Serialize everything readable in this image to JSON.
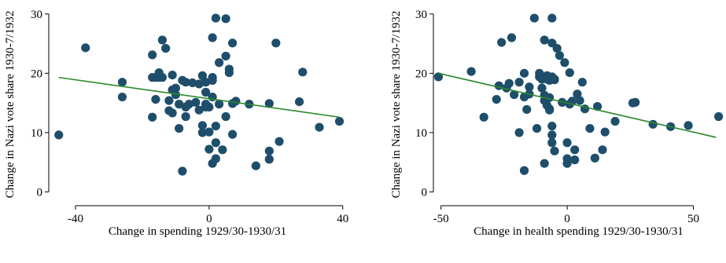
{
  "chart_data": [
    {
      "type": "scatter",
      "xlabel": "Change in spending 1929/30-1930/31",
      "ylabel": "Change in Nazi vote share 1930-7/1932",
      "xlim": [
        -48,
        41
      ],
      "ylim": [
        -1,
        30.5
      ],
      "xticks": [
        -40,
        0,
        40
      ],
      "yticks": [
        0,
        10,
        20,
        30
      ],
      "point_color": "#1f4e6b",
      "fit_color": "#2a8a2a",
      "fit_line": {
        "x": [
          -45,
          39
        ],
        "y": [
          19.3,
          12.6
        ]
      },
      "points": [
        [
          -45,
          9.6
        ],
        [
          -37,
          24.3
        ],
        [
          -26,
          18.5
        ],
        [
          -26,
          16.0
        ],
        [
          -17,
          23.1
        ],
        [
          -17,
          19.3
        ],
        [
          -16,
          19.3
        ],
        [
          -17,
          12.6
        ],
        [
          -15,
          20.1
        ],
        [
          -15,
          19.3
        ],
        [
          -14,
          25.6
        ],
        [
          -14,
          19.3
        ],
        [
          -16,
          15.6
        ],
        [
          -13,
          24.2
        ],
        [
          -12,
          15.4
        ],
        [
          -11,
          19.7
        ],
        [
          -11,
          17.2
        ],
        [
          -10,
          17.5
        ],
        [
          -12,
          13.7
        ],
        [
          -11,
          13.3
        ],
        [
          -10,
          16.4
        ],
        [
          -9,
          14.8
        ],
        [
          -9,
          10.7
        ],
        [
          -8,
          18.8
        ],
        [
          -7,
          18.5
        ],
        [
          -7,
          14.3
        ],
        [
          -7,
          12.7
        ],
        [
          -8,
          3.5
        ],
        [
          -6,
          14.8
        ],
        [
          -5,
          18.4
        ],
        [
          -4,
          15.1
        ],
        [
          -3,
          18.2
        ],
        [
          -3,
          13.8
        ],
        [
          -2,
          10.0
        ],
        [
          -2,
          11.2
        ],
        [
          -2,
          19.6
        ],
        [
          -1,
          18.5
        ],
        [
          -1,
          14.8
        ],
        [
          -1,
          14.3
        ],
        [
          -1,
          16.8
        ],
        [
          0,
          10.1
        ],
        [
          0,
          7.2
        ],
        [
          0,
          14.3
        ],
        [
          1,
          19.3
        ],
        [
          1,
          18.8
        ],
        [
          1,
          16.0
        ],
        [
          1,
          26.0
        ],
        [
          1,
          4.8
        ],
        [
          2,
          29.3
        ],
        [
          2,
          11.1
        ],
        [
          2,
          8.3
        ],
        [
          2,
          5.6
        ],
        [
          3,
          21.8
        ],
        [
          3,
          14.8
        ],
        [
          4,
          7.1
        ],
        [
          5,
          29.2
        ],
        [
          5,
          22.9
        ],
        [
          5,
          12.7
        ],
        [
          6,
          20.1
        ],
        [
          6,
          20.7
        ],
        [
          7,
          25.1
        ],
        [
          7,
          14.9
        ],
        [
          7,
          9.7
        ],
        [
          8,
          15.3
        ],
        [
          12,
          14.8
        ],
        [
          14,
          4.4
        ],
        [
          18,
          14.9
        ],
        [
          18,
          6.9
        ],
        [
          18,
          5.5
        ],
        [
          20,
          25.1
        ],
        [
          21,
          8.5
        ],
        [
          27,
          15.2
        ],
        [
          28,
          20.2
        ],
        [
          33,
          10.9
        ],
        [
          39,
          11.9
        ]
      ]
    },
    {
      "type": "scatter",
      "xlabel": "Change in health spending 1929/30-1930/31",
      "ylabel": "Change in Nazi vote share 1930-7/1932",
      "xlim": [
        -53,
        62
      ],
      "ylim": [
        -1,
        30.5
      ],
      "xticks": [
        -50,
        0,
        50
      ],
      "yticks": [
        0,
        10,
        20,
        30
      ],
      "point_color": "#1f4e6b",
      "fit_color": "#2a8a2a",
      "fit_line": {
        "x": [
          -51,
          59
        ],
        "y": [
          20.0,
          9.2
        ]
      },
      "points": [
        [
          -51,
          19.4
        ],
        [
          -38,
          20.3
        ],
        [
          -33,
          12.6
        ],
        [
          -28,
          15.6
        ],
        [
          -27,
          17.9
        ],
        [
          -26,
          25.2
        ],
        [
          -24,
          17.5
        ],
        [
          -23,
          18.3
        ],
        [
          -22,
          26.0
        ],
        [
          -21,
          16.4
        ],
        [
          -19,
          18.5
        ],
        [
          -19,
          10.0
        ],
        [
          -17,
          16.0
        ],
        [
          -17,
          20.0
        ],
        [
          -17,
          3.6
        ],
        [
          -16,
          13.9
        ],
        [
          -15,
          17.7
        ],
        [
          -15,
          16.5
        ],
        [
          -13,
          29.3
        ],
        [
          -12,
          10.7
        ],
        [
          -11,
          20.0
        ],
        [
          -11,
          19.4
        ],
        [
          -10,
          17.5
        ],
        [
          -10,
          19.0
        ],
        [
          -9,
          25.6
        ],
        [
          -9,
          16.3
        ],
        [
          -9,
          15.4
        ],
        [
          -9,
          4.8
        ],
        [
          -8,
          19.6
        ],
        [
          -8,
          19.0
        ],
        [
          -8,
          14.6
        ],
        [
          -7,
          19.3
        ],
        [
          -7,
          18.8
        ],
        [
          -7,
          15.9
        ],
        [
          -7,
          14.0
        ],
        [
          -7,
          13.8
        ],
        [
          -6,
          29.3
        ],
        [
          -6,
          25.1
        ],
        [
          -6,
          19.4
        ],
        [
          -6,
          11.1
        ],
        [
          -6,
          9.6
        ],
        [
          -6,
          8.3
        ],
        [
          -5,
          19.0
        ],
        [
          -5,
          18.9
        ],
        [
          -5,
          6.9
        ],
        [
          -4,
          24.2
        ],
        [
          -3,
          23.0
        ],
        [
          -2,
          15.1
        ],
        [
          -1,
          21.8
        ],
        [
          0,
          8.3
        ],
        [
          0,
          5.6
        ],
        [
          0,
          4.8
        ],
        [
          1,
          20.1
        ],
        [
          1,
          14.8
        ],
        [
          2,
          15.3
        ],
        [
          3,
          7.1
        ],
        [
          3,
          5.4
        ],
        [
          4,
          16.5
        ],
        [
          5,
          15.4
        ],
        [
          6,
          18.5
        ],
        [
          7,
          14.0
        ],
        [
          9,
          10.7
        ],
        [
          11,
          5.7
        ],
        [
          12,
          14.4
        ],
        [
          14,
          7.1
        ],
        [
          15,
          10.1
        ],
        [
          19,
          11.9
        ],
        [
          26,
          15.0
        ],
        [
          27,
          15.1
        ],
        [
          34,
          11.4
        ],
        [
          41,
          11.0
        ],
        [
          48,
          11.2
        ],
        [
          60,
          12.7
        ]
      ]
    }
  ]
}
